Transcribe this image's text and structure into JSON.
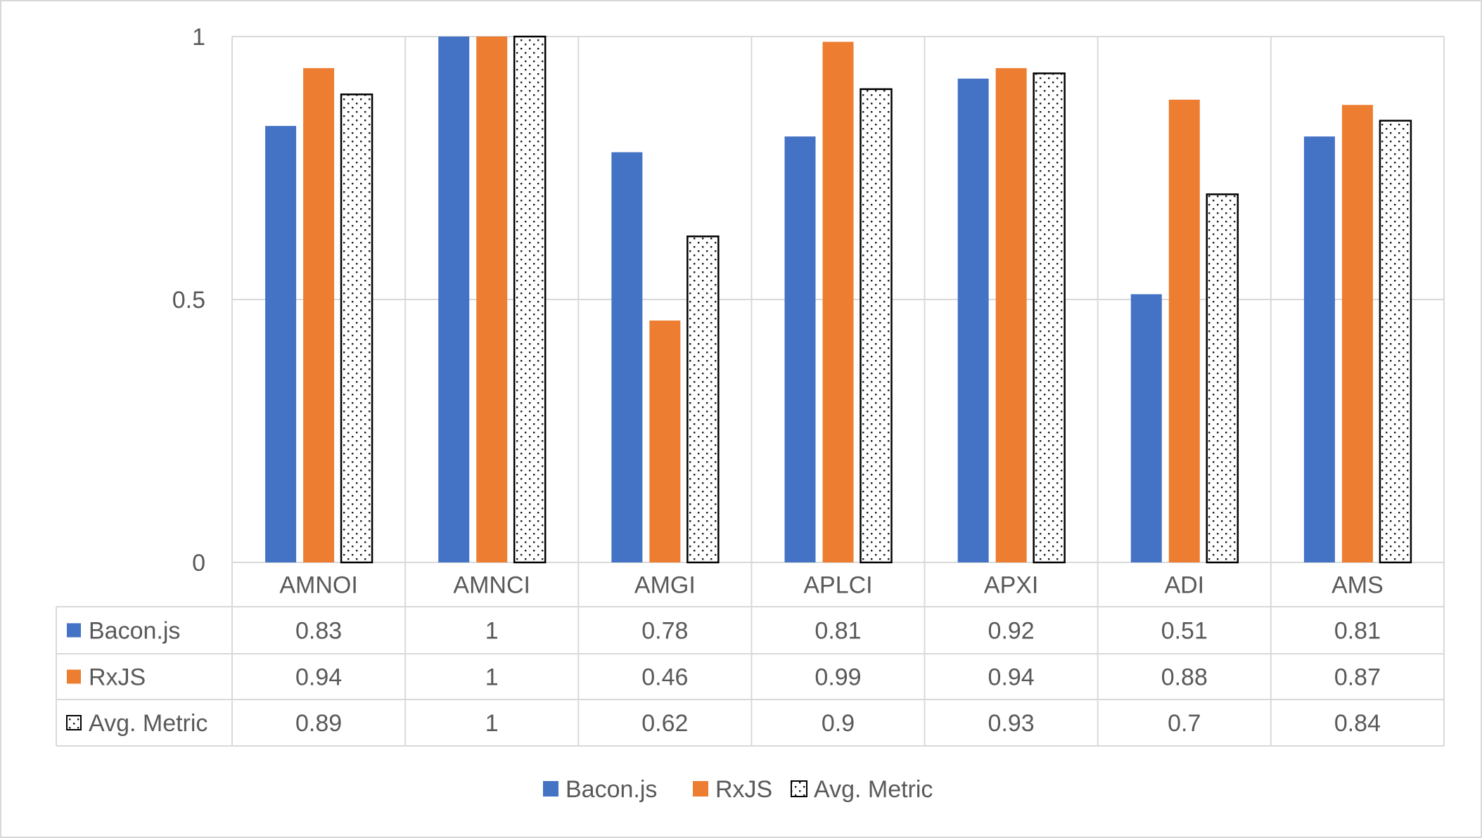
{
  "chart_data": {
    "type": "bar",
    "categories": [
      "AMNOI",
      "AMNCI",
      "AMGI",
      "APLCI",
      "APXI",
      "ADI",
      "AMS"
    ],
    "series": [
      {
        "name": "Bacon.js",
        "values": [
          0.83,
          1,
          0.78,
          0.81,
          0.92,
          0.51,
          0.81
        ],
        "color": "#4472C4",
        "pattern": "solid"
      },
      {
        "name": "RxJS",
        "values": [
          0.94,
          1,
          0.46,
          0.99,
          0.94,
          0.88,
          0.87
        ],
        "color": "#ED7D31",
        "pattern": "solid"
      },
      {
        "name": "Avg. Metric",
        "values": [
          0.89,
          1,
          0.62,
          0.9,
          0.93,
          0.7,
          0.84
        ],
        "color": "#000000",
        "pattern": "dotted"
      }
    ],
    "table_values": [
      [
        "0.83",
        "1",
        "0.78",
        "0.81",
        "0.92",
        "0.51",
        "0.81"
      ],
      [
        "0.94",
        "1",
        "0.46",
        "0.99",
        "0.94",
        "0.88",
        "0.87"
      ],
      [
        "0.89",
        "1",
        "0.62",
        "0.9",
        "0.93",
        "0.7",
        "0.84"
      ]
    ],
    "yticks": [
      "0",
      "0.5",
      "1"
    ],
    "ylim": [
      0,
      1
    ],
    "grid": true,
    "data_table": true,
    "legend": "bottom-center"
  }
}
